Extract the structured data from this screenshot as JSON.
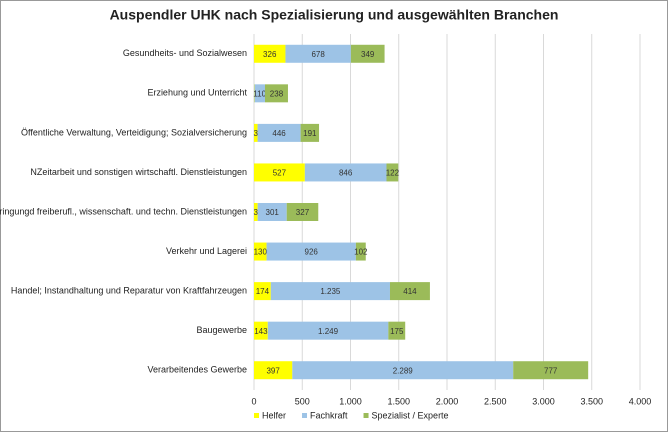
{
  "chart_data": {
    "type": "stacked-barh",
    "title": "Auspendler UHK nach Spezialisierung und ausgewählten Branchen",
    "categories": [
      "Gesundheits- und Sozialwesen",
      "Erziehung und Unterricht",
      "Öffentliche Verwaltung, Verteidigung; Sozialversicherung",
      "NZeitarbeit und sonstigen wirtschaftl. Dienstleistungen",
      "Erbringungd freiberufl., wissenschaft. und techn. Dienstleistungen",
      "Verkehr und Lagerei",
      "Handel; Instandhaltung und Reparatur von Kraftfahrzeugen",
      "Baugewerbe",
      "Verarbeitendes Gewerbe"
    ],
    "series": [
      {
        "name": "Helfer",
        "color": "#ffff00",
        "values": [
          326,
          4,
          37,
          527,
          38,
          130,
          174,
          143,
          397
        ]
      },
      {
        "name": "Fachkraft",
        "color": "#9dc3e6",
        "values": [
          678,
          110,
          446,
          846,
          301,
          926,
          1235,
          1249,
          2289
        ],
        "value_labels": [
          "678",
          "110",
          "446",
          "846",
          "301",
          "926",
          "1.235",
          "1.249",
          "2.289"
        ]
      },
      {
        "name": "Spezialist / Experte",
        "color": "#9bbb59",
        "values": [
          349,
          238,
          191,
          122,
          327,
          102,
          414,
          175,
          777
        ]
      }
    ],
    "xlim": [
      0,
      4000
    ],
    "xticks": [
      0,
      500,
      {
        "value": 1000,
        "label": "1.000"
      },
      {
        "value": 1500,
        "label": "1.500"
      },
      {
        "value": 2000,
        "label": "2.000"
      },
      {
        "value": 2500,
        "label": "2.500"
      },
      {
        "value": 3000,
        "label": "3.000"
      },
      {
        "value": 3500,
        "label": "3.500"
      },
      {
        "value": 4000,
        "label": "4.000"
      }
    ],
    "grid": true,
    "legend": "bottom"
  }
}
